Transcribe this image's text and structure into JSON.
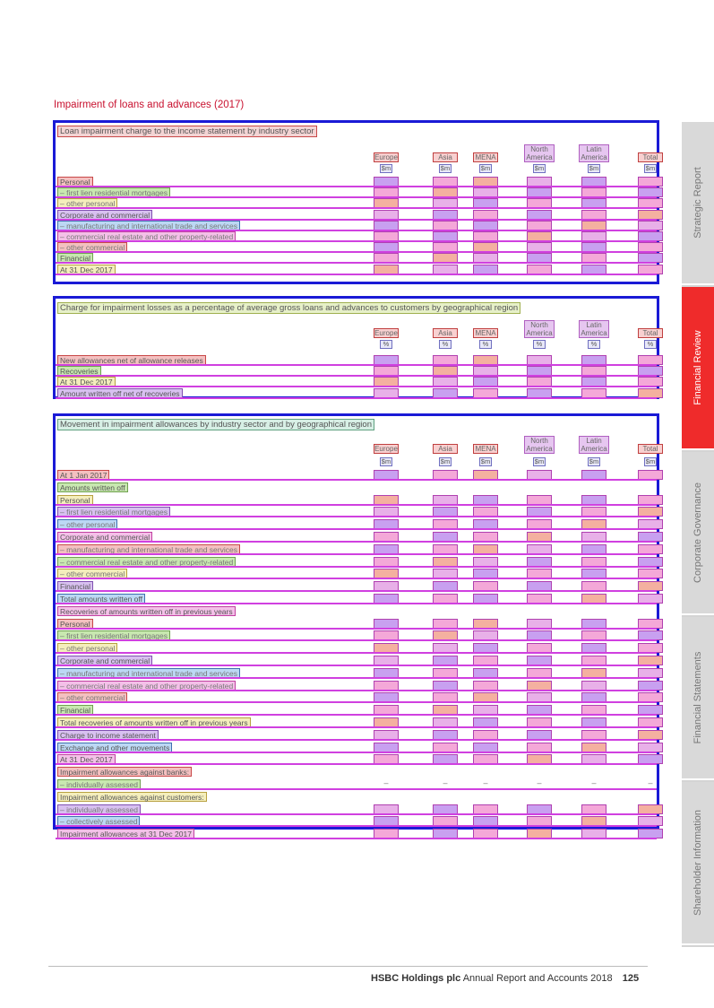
{
  "page_title": "Impairment of loans and advances (2017)",
  "sidebar": [
    {
      "label": "Strategic Report",
      "active": false
    },
    {
      "label": "Financial Review",
      "active": true
    },
    {
      "label": "Corporate Governance",
      "active": false
    },
    {
      "label": "Financial Statements",
      "active": false
    },
    {
      "label": "Shareholder Information",
      "active": false
    }
  ],
  "footer": {
    "brand": "HSBC Holdings plc",
    "doc": "Annual Report and Accounts 2018",
    "page": "125"
  },
  "columns": [
    {
      "line1": "",
      "line2": "Europe"
    },
    {
      "line1": "",
      "line2": "Asia"
    },
    {
      "line1": "",
      "line2": "MENA"
    },
    {
      "line1": "North",
      "line2": "America"
    },
    {
      "line1": "Latin",
      "line2": "America"
    },
    {
      "line1": "",
      "line2": "Total"
    }
  ],
  "unit_symbol": "$m",
  "units_pct": "%",
  "loan_table": {
    "title": "Loan impairment charge to the income statement by industry sector",
    "first_label": "At 31 Dec",
    "rows": [
      {
        "label": "Personal",
        "sub": false,
        "values": [
          "",
          "",
          "",
          "",
          "",
          ""
        ]
      },
      {
        "label": "– first lien residential mortgages",
        "sub": true,
        "values": [
          "",
          "",
          "",
          "",
          "",
          ""
        ]
      },
      {
        "label": "– other personal",
        "sub": true,
        "values": [
          "",
          "",
          "",
          "",
          "",
          ""
        ]
      },
      {
        "label": "Corporate and commercial",
        "sub": false,
        "values": [
          "",
          "",
          "",
          "",
          "",
          ""
        ]
      },
      {
        "label": "– manufacturing and international trade and services",
        "sub": true,
        "values": [
          "",
          "",
          "",
          "",
          "",
          ""
        ]
      },
      {
        "label": "– commercial real estate and other property-related",
        "sub": true,
        "values": [
          "",
          "",
          "",
          "",
          "",
          ""
        ]
      },
      {
        "label": "– other commercial",
        "sub": true,
        "values": [
          "",
          "",
          "",
          "",
          "",
          ""
        ]
      },
      {
        "label": "Financial",
        "sub": false,
        "values": [
          "",
          "",
          "",
          "",
          "",
          ""
        ]
      },
      {
        "label": "At 31 Dec 2017",
        "sub": false,
        "values": [
          "",
          "",
          "",
          "",
          "",
          ""
        ]
      }
    ]
  },
  "charge_table": {
    "title": "Charge for impairment losses as a percentage of average gross loans and advances to customers by geographical region",
    "rows": [
      {
        "label": "New allowances net of allowance releases",
        "values": [
          "",
          "",
          "",
          "",
          "",
          ""
        ]
      },
      {
        "label": "Recoveries",
        "values": [
          "",
          "",
          "",
          "",
          "",
          ""
        ]
      },
      {
        "label": "At 31 Dec 2017",
        "values": [
          "",
          "",
          "",
          "",
          "",
          ""
        ]
      },
      {
        "label": "Amount written off net of recoveries",
        "values": [
          "",
          "",
          "",
          "",
          "",
          ""
        ]
      }
    ]
  },
  "movement_table": {
    "title": "Movement in impairment allowances by industry sector and by geographical region",
    "rows": [
      {
        "label": "At 1 Jan 2017",
        "sub": false,
        "values": [
          "",
          "",
          "",
          "",
          "",
          ""
        ]
      },
      {
        "label": "Amounts written off",
        "sub": false,
        "values": null
      },
      {
        "label": "Personal",
        "sub": false,
        "values": [
          "",
          "",
          "",
          "",
          "",
          ""
        ]
      },
      {
        "label": "– first lien residential mortgages",
        "sub": true,
        "values": [
          "",
          "",
          "",
          "",
          "",
          ""
        ]
      },
      {
        "label": "– other personal",
        "sub": true,
        "values": [
          "",
          "",
          "",
          "",
          "",
          ""
        ]
      },
      {
        "label": "Corporate and commercial",
        "sub": false,
        "values": [
          "",
          "",
          "",
          "",
          "",
          ""
        ]
      },
      {
        "label": "– manufacturing and international trade and services",
        "sub": true,
        "values": [
          "",
          "",
          "",
          "",
          "",
          ""
        ]
      },
      {
        "label": "– commercial real estate and other property-related",
        "sub": true,
        "values": [
          "",
          "",
          "",
          "",
          "",
          ""
        ]
      },
      {
        "label": "– other commercial",
        "sub": true,
        "values": [
          "",
          "",
          "",
          "",
          "",
          ""
        ]
      },
      {
        "label": "Financial",
        "sub": false,
        "values": [
          "",
          "",
          "",
          "",
          "",
          ""
        ]
      },
      {
        "label": "Total amounts written off",
        "sub": false,
        "values": [
          "",
          "",
          "",
          "",
          "",
          ""
        ]
      },
      {
        "label": "Recoveries of amounts written off in previous years",
        "sub": false,
        "values": null
      },
      {
        "label": "Personal",
        "sub": false,
        "values": [
          "",
          "",
          "",
          "",
          "",
          ""
        ]
      },
      {
        "label": "– first lien residential mortgages",
        "sub": true,
        "values": [
          "",
          "",
          "",
          "",
          "",
          ""
        ]
      },
      {
        "label": "– other personal",
        "sub": true,
        "values": [
          "",
          "",
          "",
          "",
          "",
          ""
        ]
      },
      {
        "label": "Corporate and commercial",
        "sub": false,
        "values": [
          "",
          "",
          "",
          "",
          "",
          ""
        ]
      },
      {
        "label": "– manufacturing and international trade and services",
        "sub": true,
        "values": [
          "",
          "",
          "",
          "",
          "",
          ""
        ]
      },
      {
        "label": "– commercial real estate and other property-related",
        "sub": true,
        "values": [
          "",
          "",
          "",
          "",
          "",
          ""
        ]
      },
      {
        "label": "– other commercial",
        "sub": true,
        "values": [
          "",
          "",
          "",
          "",
          "",
          ""
        ]
      },
      {
        "label": "Financial",
        "sub": false,
        "values": [
          "",
          "",
          "",
          "",
          "",
          ""
        ]
      },
      {
        "label": "Total recoveries of amounts written off in previous years",
        "sub": false,
        "values": [
          "",
          "",
          "",
          "",
          "",
          ""
        ]
      },
      {
        "label": "Charge to income statement",
        "sub": false,
        "values": [
          "",
          "",
          "",
          "",
          "",
          ""
        ]
      },
      {
        "label": "Exchange and other movements",
        "sub": false,
        "values": [
          "",
          "",
          "",
          "",
          "",
          ""
        ]
      },
      {
        "label": "At 31 Dec 2017",
        "sub": false,
        "values": [
          "",
          "",
          "",
          "",
          "",
          ""
        ]
      },
      {
        "label": "Impairment allowances against banks:",
        "sub": false,
        "values": null
      },
      {
        "label": "– individually assessed",
        "sub": true,
        "values": [
          "–",
          "–",
          "–",
          "–",
          "–",
          "–"
        ]
      },
      {
        "label": "Impairment allowances against customers:",
        "sub": false,
        "values": null
      },
      {
        "label": "– individually assessed",
        "sub": true,
        "values": [
          "",
          "",
          "",
          "",
          "",
          ""
        ]
      },
      {
        "label": "– collectively assessed",
        "sub": true,
        "values": [
          "",
          "",
          "",
          "",
          "",
          ""
        ]
      },
      {
        "label": "Impairment allowances at 31 Dec 2017",
        "sub": false,
        "values": [
          "",
          "",
          "",
          "",
          "",
          ""
        ]
      }
    ]
  }
}
